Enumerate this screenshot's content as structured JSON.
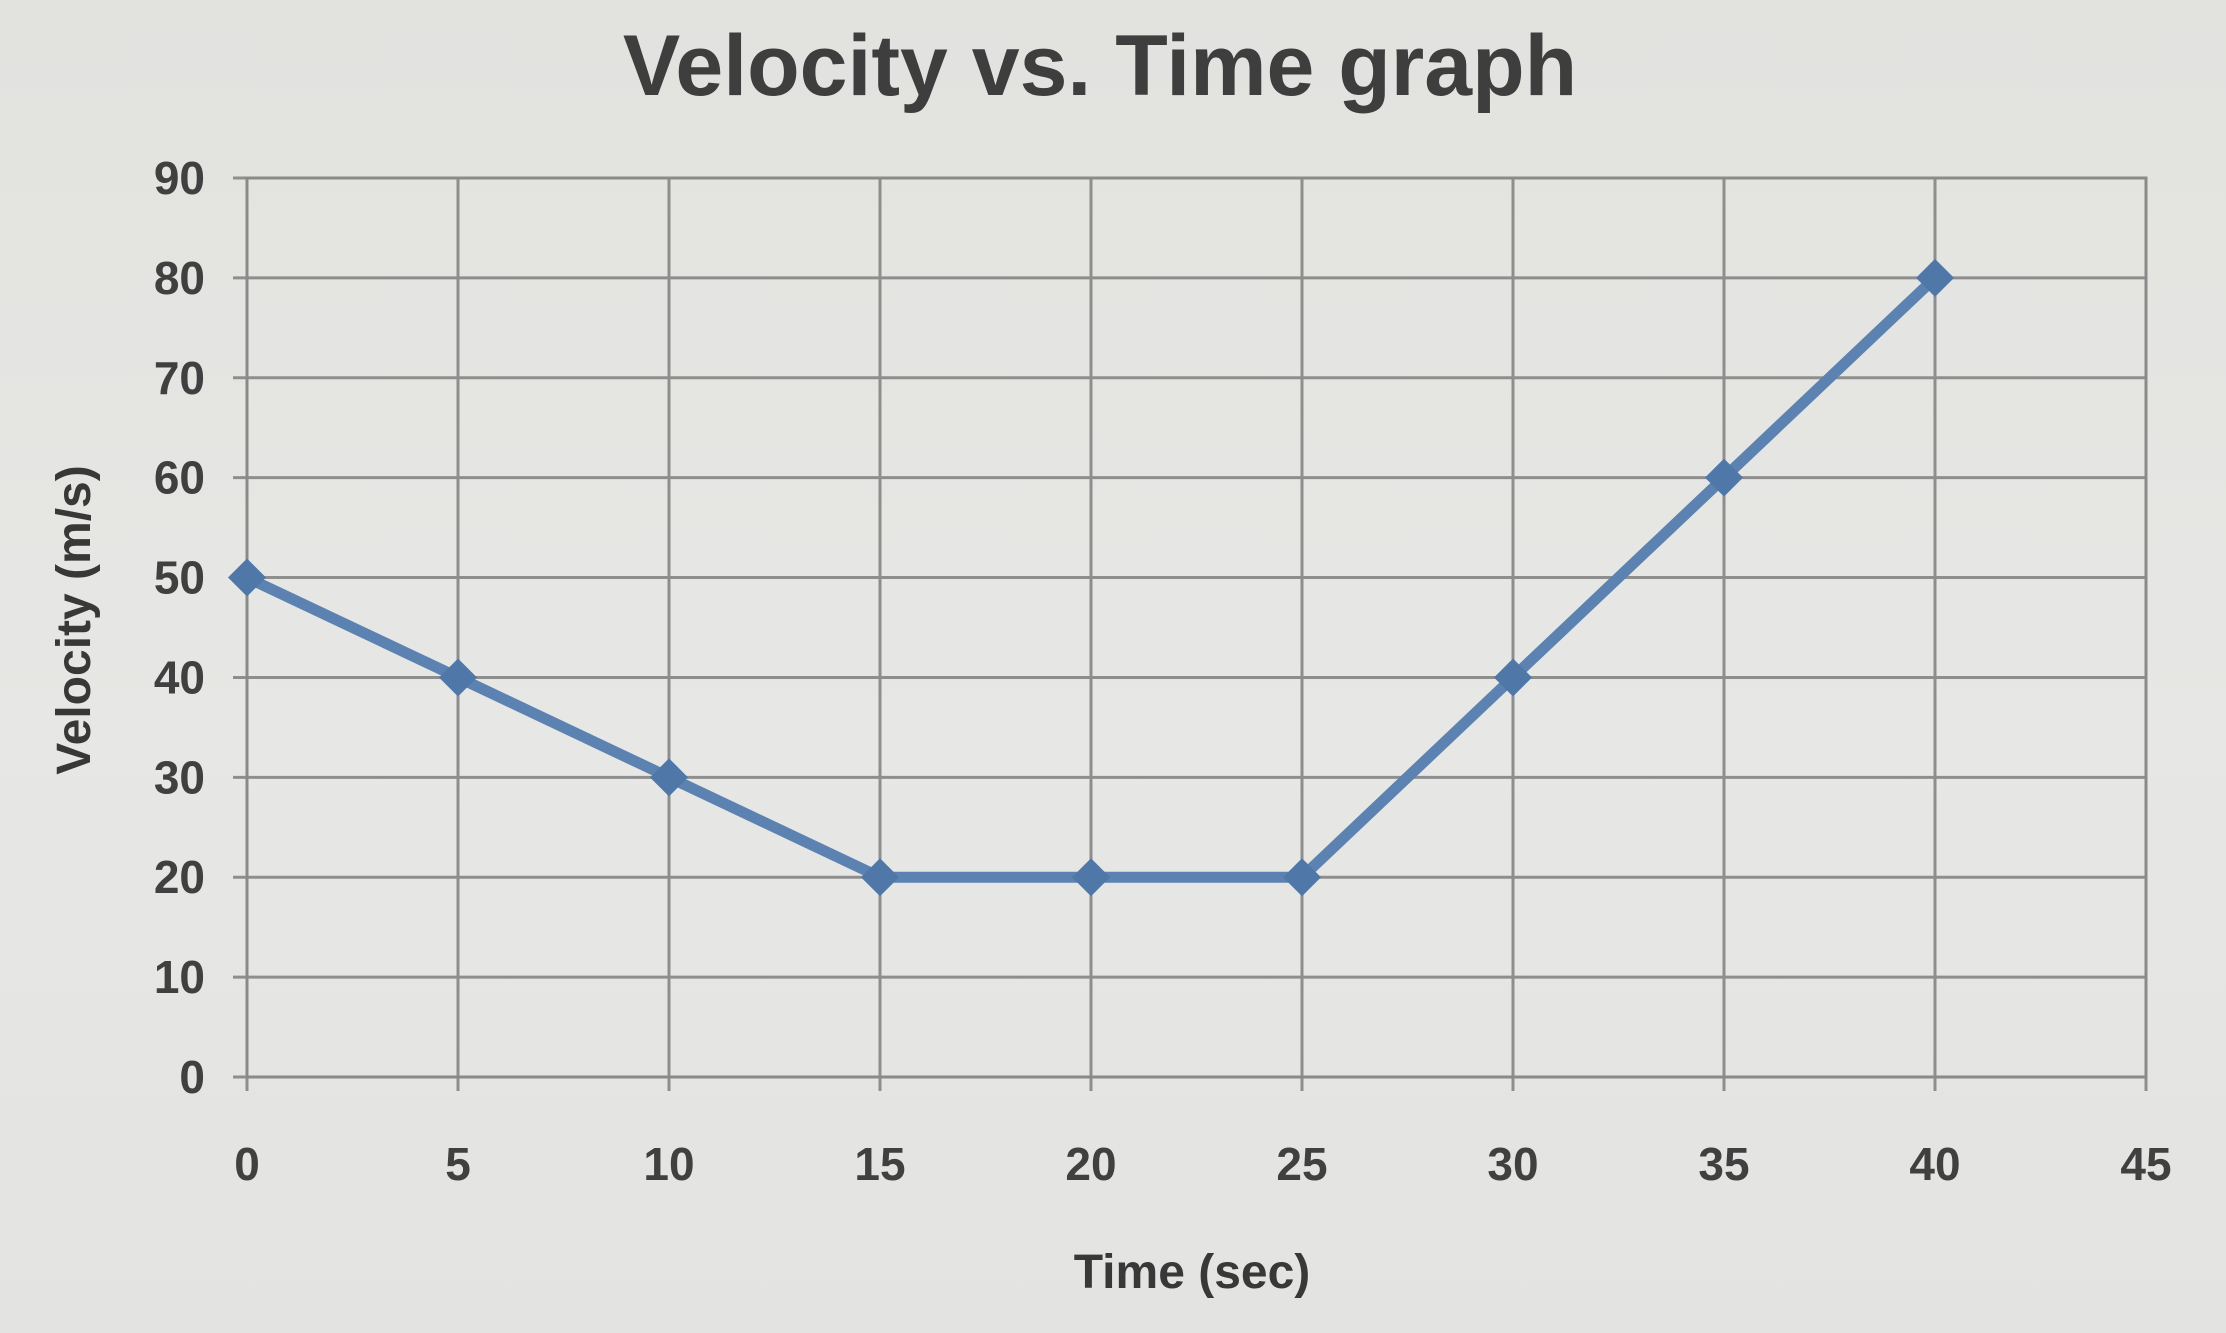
{
  "chart_data": {
    "type": "line",
    "title": "Velocity vs. Time graph",
    "xlabel": "Time (sec)",
    "ylabel": "Velocity (m/s)",
    "xlim": [
      0,
      45
    ],
    "ylim": [
      0,
      90
    ],
    "x_ticks": [
      "0",
      "5",
      "10",
      "15",
      "20",
      "25",
      "30",
      "35",
      "40",
      "45"
    ],
    "y_ticks": [
      "0",
      "10",
      "20",
      "30",
      "40",
      "50",
      "60",
      "70",
      "80",
      "90"
    ],
    "grid": true,
    "legend": "none",
    "series": [
      {
        "color": "#5b82b0",
        "marker": "diamond",
        "x": [
          0,
          5,
          10,
          15,
          20,
          25,
          30,
          35,
          40
        ],
        "y": [
          50,
          40,
          30,
          20,
          20,
          20,
          40,
          60,
          80
        ]
      }
    ]
  }
}
